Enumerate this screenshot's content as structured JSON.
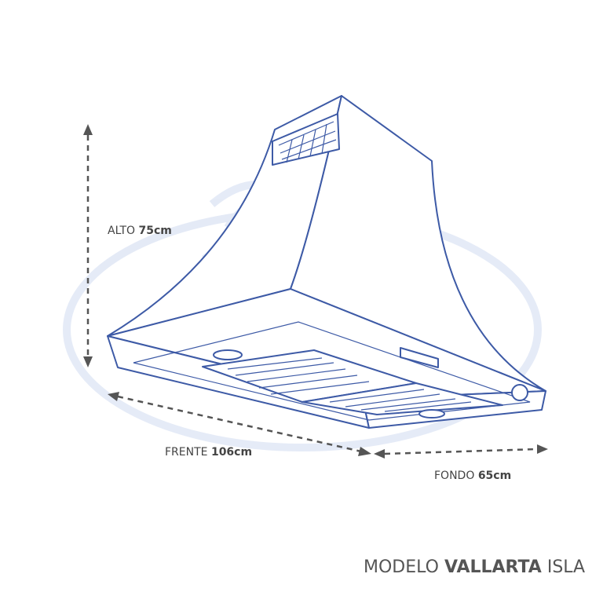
{
  "dimensions": [
    {
      "label": "ALTO",
      "value": "75cm"
    },
    {
      "label": "FRENTE",
      "value": "106cm"
    },
    {
      "label": "FONDO",
      "value": "65cm"
    }
  ],
  "model": {
    "prefix": "MODELO",
    "name": "VALLARTA",
    "suffix": "ISLA"
  }
}
